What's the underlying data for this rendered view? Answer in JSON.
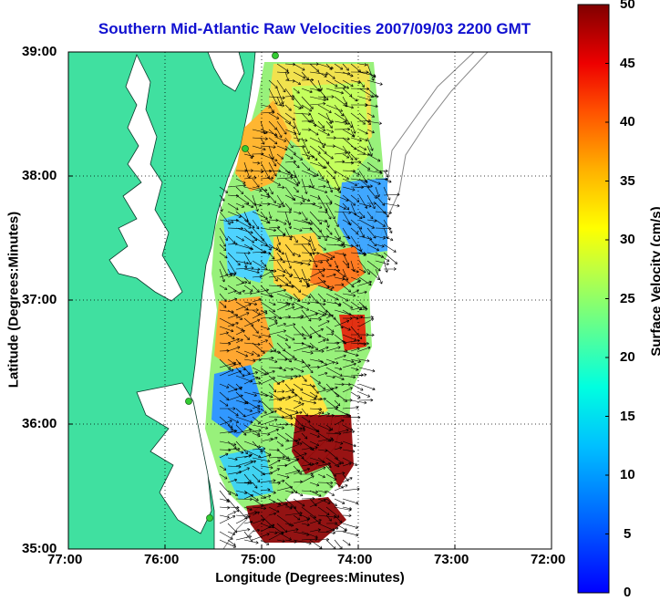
{
  "title": "Southern Mid-Atlantic Raw Velocities 2007/09/03 2200 GMT",
  "x_axis": {
    "label": "Longitude (Degrees:Minutes)",
    "ticks": [
      "77:00",
      "76:00",
      "75:00",
      "74:00",
      "73:00",
      "72:00"
    ]
  },
  "y_axis": {
    "label": "Latitude (Degrees:Minutes)",
    "ticks": [
      "39:00",
      "38:00",
      "37:00",
      "36:00",
      "35:00"
    ]
  },
  "colorbar": {
    "label": "Surface Velocity (cm/s)",
    "ticks": [
      "50",
      "45",
      "40",
      "35",
      "30",
      "25",
      "20",
      "15",
      "10",
      "5",
      "0"
    ],
    "range": [
      0,
      50
    ],
    "colormap": "jet"
  },
  "colors": {
    "land": "#40e0a0",
    "title": "#1010d0",
    "station": "#33cc33"
  },
  "chart_data": {
    "type": "heatmap",
    "title": "Southern Mid-Atlantic Raw Velocities 2007/09/03 2200 GMT",
    "xlabel": "Longitude (Degrees:Minutes)",
    "ylabel": "Latitude (Degrees:Minutes)",
    "xlim": [
      -77,
      -72
    ],
    "ylim": [
      35,
      39
    ],
    "colorbar_label": "Surface Velocity (cm/s)",
    "colorbar_range": [
      0,
      50
    ],
    "grid": true,
    "features": [
      "coastline",
      "bathymetry contours",
      "HF radar stations",
      "velocity vectors"
    ]
  }
}
